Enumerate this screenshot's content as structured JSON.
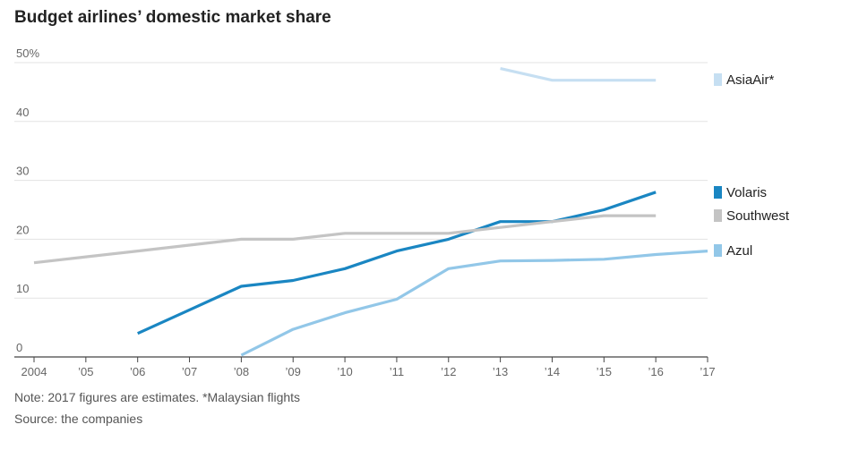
{
  "title": "Budget airlines’ domestic market share",
  "note": "Note: 2017 figures are estimates. *Malaysian flights",
  "source": "Source: the companies",
  "chart_data": {
    "type": "line",
    "title": "Budget airlines’ domestic market share",
    "xlabel": "",
    "ylabel": "",
    "x": [
      2004,
      2005,
      2006,
      2007,
      2008,
      2009,
      2010,
      2011,
      2012,
      2013,
      2014,
      2015,
      2016,
      2017
    ],
    "x_tick_labels": [
      "2004",
      "’05",
      "’06",
      "’07",
      "’08",
      "’09",
      "’10",
      "’11",
      "’12",
      "’13",
      "’14",
      "’15",
      "’16",
      "’17"
    ],
    "y_tick_values": [
      0,
      10,
      20,
      30,
      40,
      50
    ],
    "y_tick_labels": [
      "0",
      "10",
      "20",
      "30",
      "40",
      "50%"
    ],
    "ylim": [
      0,
      50
    ],
    "xlim": [
      2004,
      2017
    ],
    "grid": true,
    "legend_position": "right",
    "series": [
      {
        "name": "AsiaAir*",
        "color": "#c6dff2",
        "x": [
          2013,
          2014,
          2015,
          2016
        ],
        "values": [
          49,
          47,
          47,
          47
        ]
      },
      {
        "name": "Volaris",
        "color": "#1a86c2",
        "x": [
          2006,
          2007,
          2008,
          2009,
          2010,
          2011,
          2012,
          2013,
          2014,
          2015,
          2016
        ],
        "values": [
          4,
          8,
          12,
          13,
          15,
          18,
          20,
          23,
          23,
          25,
          28
        ]
      },
      {
        "name": "Southwest",
        "color": "#c4c4c4",
        "x": [
          2004,
          2005,
          2006,
          2007,
          2008,
          2009,
          2010,
          2011,
          2012,
          2013,
          2014,
          2015,
          2016
        ],
        "values": [
          16,
          17,
          18,
          19,
          20,
          20,
          21,
          21,
          21,
          22,
          23,
          24,
          24
        ]
      },
      {
        "name": "Azul",
        "color": "#92c7e8",
        "x": [
          2008,
          2009,
          2010,
          2011,
          2012,
          2013,
          2014,
          2015,
          2016,
          2017
        ],
        "values": [
          0.3,
          4.7,
          7.5,
          9.8,
          15,
          16.3,
          16.4,
          16.6,
          17.4,
          18
        ]
      }
    ]
  }
}
